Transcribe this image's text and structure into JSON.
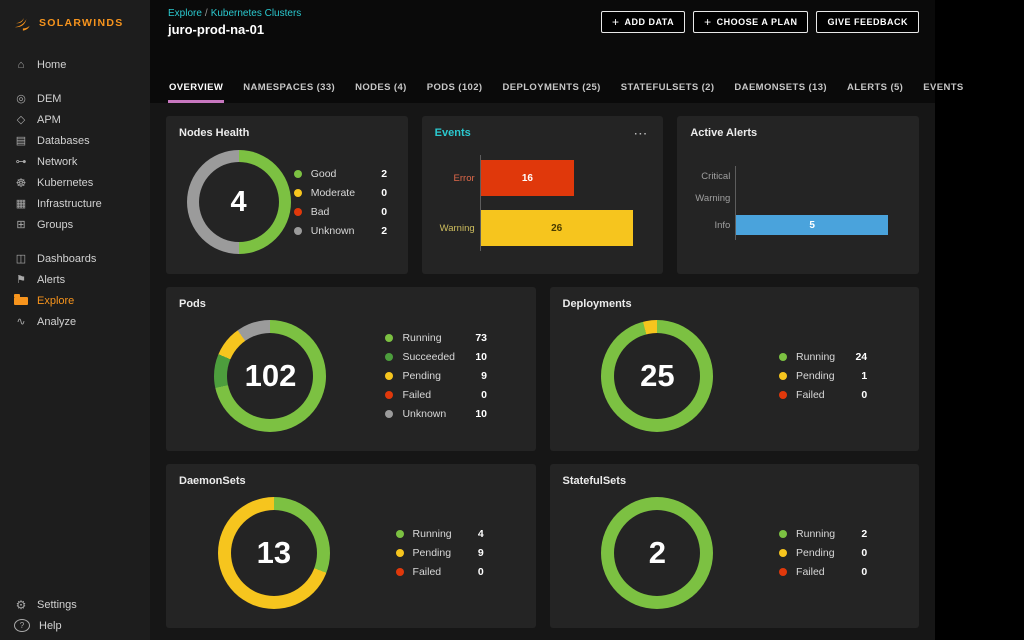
{
  "brand": {
    "name": "SOLARWINDS"
  },
  "colors": {
    "orange": "#f7941d",
    "teal": "#2bc9cf",
    "tab_accent": "#c877c0",
    "green": "#7cc142",
    "dark_green": "#4d9e3d",
    "yellow": "#f6c51e",
    "red": "#e0380b",
    "gray": "#9b9b9b",
    "blue": "#4aa3dc"
  },
  "header": {
    "breadcrumb": [
      "Explore",
      "Kubernetes Clusters"
    ],
    "breadcrumb_separator": "/",
    "title": "juro-prod-na-01",
    "buttons": [
      {
        "label": "ADD DATA",
        "icon": "plus"
      },
      {
        "label": "CHOOSE A PLAN",
        "icon": "plus"
      },
      {
        "label": "GIVE FEEDBACK"
      }
    ]
  },
  "sidebar": {
    "sections": [
      {
        "items": [
          {
            "label": "Home",
            "icon": "home"
          }
        ]
      },
      {
        "items": [
          {
            "label": "DEM",
            "icon": "dem"
          },
          {
            "label": "APM",
            "icon": "apm"
          },
          {
            "label": "Databases",
            "icon": "databases"
          },
          {
            "label": "Network",
            "icon": "network"
          },
          {
            "label": "Kubernetes",
            "icon": "kubernetes"
          },
          {
            "label": "Infrastructure",
            "icon": "infrastructure"
          },
          {
            "label": "Groups",
            "icon": "groups"
          }
        ]
      },
      {
        "items": [
          {
            "label": "Dashboards",
            "icon": "dashboards"
          },
          {
            "label": "Alerts",
            "icon": "alerts"
          },
          {
            "label": "Explore",
            "icon": "explore",
            "active": true
          },
          {
            "label": "Analyze",
            "icon": "analyze"
          }
        ]
      }
    ],
    "bottom": {
      "items": [
        {
          "label": "Settings",
          "icon": "settings"
        },
        {
          "label": "Help",
          "icon": "help"
        }
      ]
    }
  },
  "tabs": [
    {
      "label": "OVERVIEW",
      "active": true
    },
    {
      "label": "NAMESPACES (33)"
    },
    {
      "label": "NODES (4)"
    },
    {
      "label": "PODS (102)"
    },
    {
      "label": "DEPLOYMENTS (25)"
    },
    {
      "label": "STATEFULSETS (2)"
    },
    {
      "label": "DAEMONSETS (13)"
    },
    {
      "label": "ALERTS (5)"
    },
    {
      "label": "EVENTS"
    }
  ],
  "rows": [
    {
      "cols": 3,
      "cards": [
        {
          "title": "Nodes Health",
          "type": "donut",
          "center_value": "4",
          "segments": [
            {
              "label": "Good",
              "value": 2,
              "color": "#7cc142"
            },
            {
              "label": "Moderate",
              "value": 0,
              "color": "#f6c51e"
            },
            {
              "label": "Bad",
              "value": 0,
              "color": "#e0380b"
            },
            {
              "label": "Unknown",
              "value": 2,
              "color": "#9b9b9b"
            }
          ]
        },
        {
          "title": "Events",
          "title_color": "#2bc9cf",
          "menu": true,
          "type": "bars",
          "scale_max": 28,
          "bars": [
            {
              "label": "Error",
              "value": 16,
              "color": "#e0380b",
              "label_color": "#e0694a",
              "value_color": "#ffffff"
            },
            {
              "label": "Warning",
              "value": 26,
              "color": "#f6c51e",
              "label_color": "#cdbd5e",
              "value_color": "#4a3c00"
            }
          ]
        },
        {
          "title": "Active Alerts",
          "type": "bars",
          "scale_max": 5.4,
          "bars": [
            {
              "label": "Critical",
              "value": 0,
              "color": "#e0380b",
              "label_color": "#9f9f9f"
            },
            {
              "label": "Warning",
              "value": 0,
              "color": "#f6c51e",
              "label_color": "#9f9f9f"
            },
            {
              "label": "Info",
              "value": 5,
              "color": "#4aa3dc",
              "label_color": "#9f9f9f",
              "value_color": "#ffffff"
            }
          ]
        }
      ]
    },
    {
      "cols": 2,
      "cards": [
        {
          "title": "Pods",
          "type": "donut",
          "center_value": "102",
          "segments": [
            {
              "label": "Running",
              "value": 73,
              "color": "#7cc142"
            },
            {
              "label": "Succeeded",
              "value": 10,
              "color": "#4d9e3d"
            },
            {
              "label": "Pending",
              "value": 9,
              "color": "#f6c51e"
            },
            {
              "label": "Failed",
              "value": 0,
              "color": "#e0380b"
            },
            {
              "label": "Unknown",
              "value": 10,
              "color": "#9b9b9b"
            }
          ]
        },
        {
          "title": "Deployments",
          "type": "donut",
          "center_value": "25",
          "segments": [
            {
              "label": "Running",
              "value": 24,
              "color": "#7cc142"
            },
            {
              "label": "Pending",
              "value": 1,
              "color": "#f6c51e"
            },
            {
              "label": "Failed",
              "value": 0,
              "color": "#e0380b"
            }
          ]
        }
      ]
    },
    {
      "cols": 2,
      "cards": [
        {
          "title": "DaemonSets",
          "type": "donut",
          "center_value": "13",
          "segments": [
            {
              "label": "Running",
              "value": 4,
              "color": "#7cc142"
            },
            {
              "label": "Pending",
              "value": 9,
              "color": "#f6c51e"
            },
            {
              "label": "Failed",
              "value": 0,
              "color": "#e0380b"
            }
          ]
        },
        {
          "title": "StatefulSets",
          "type": "donut",
          "center_value": "2",
          "segments": [
            {
              "label": "Running",
              "value": 2,
              "color": "#7cc142"
            },
            {
              "label": "Pending",
              "value": 0,
              "color": "#f6c51e"
            },
            {
              "label": "Failed",
              "value": 0,
              "color": "#e0380b"
            }
          ]
        }
      ]
    }
  ]
}
